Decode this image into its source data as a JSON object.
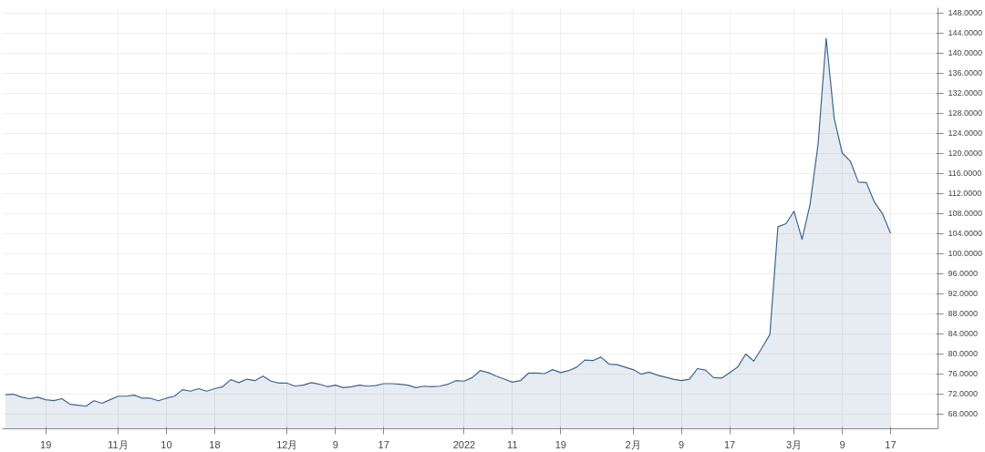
{
  "chart_data": {
    "type": "area",
    "categories": [
      null,
      null,
      null,
      null,
      null,
      "19",
      null,
      null,
      null,
      null,
      null,
      null,
      null,
      null,
      "11月",
      null,
      null,
      null,
      null,
      null,
      "10",
      null,
      null,
      null,
      null,
      null,
      "18",
      null,
      null,
      null,
      null,
      null,
      null,
      null,
      null,
      "12月",
      null,
      null,
      null,
      null,
      null,
      "9",
      null,
      null,
      null,
      null,
      null,
      "17",
      null,
      null,
      null,
      null,
      null,
      null,
      null,
      null,
      null,
      "2022",
      null,
      null,
      null,
      null,
      null,
      "11",
      null,
      null,
      null,
      null,
      null,
      "19",
      null,
      null,
      null,
      null,
      null,
      null,
      null,
      null,
      "2月",
      null,
      null,
      null,
      null,
      null,
      "9",
      null,
      null,
      null,
      null,
      null,
      "17",
      null,
      null,
      null,
      null,
      null,
      null,
      null,
      "3月",
      null,
      null,
      null,
      null,
      null,
      "9",
      null,
      null,
      null,
      null,
      null,
      "17"
    ],
    "series": [
      {
        "color": "#3b6591",
        "values": [
          71.8,
          71.9,
          71.3,
          71.0,
          71.3,
          70.8,
          70.6,
          71.0,
          69.9,
          69.7,
          69.5,
          70.6,
          70.1,
          70.8,
          71.5,
          71.5,
          71.7,
          71.1,
          71.1,
          70.6,
          71.1,
          71.5,
          72.8,
          72.5,
          73.0,
          72.5,
          73.0,
          73.4,
          74.8,
          74.2,
          74.9,
          74.6,
          75.5,
          74.5,
          74.1,
          74.1,
          73.5,
          73.7,
          74.2,
          73.9,
          73.4,
          73.7,
          73.2,
          73.4,
          73.7,
          73.5,
          73.6,
          74.0,
          74.0,
          73.9,
          73.7,
          73.2,
          73.5,
          73.4,
          73.5,
          73.9,
          74.6,
          74.5,
          75.2,
          76.6,
          76.2,
          75.5,
          74.9,
          74.3,
          74.6,
          76.1,
          76.1,
          76.0,
          76.8,
          76.2,
          76.6,
          77.3,
          78.7,
          78.6,
          79.3,
          77.9,
          77.8,
          77.3,
          76.8,
          75.9,
          76.3,
          75.7,
          75.3,
          74.9,
          74.6,
          74.9,
          77.0,
          76.7,
          75.2,
          75.1,
          76.2,
          77.3,
          79.9,
          78.5,
          81.1,
          83.8,
          105.3,
          105.9,
          108.4,
          102.8,
          109.8,
          121.9,
          142.9,
          126.9,
          120.0,
          118.4,
          114.2,
          114.1,
          110.2,
          107.9,
          104.0
        ]
      }
    ],
    "ylim": [
      65,
      149
    ],
    "yticks": [
      {
        "value": 68,
        "label": "68.0000"
      },
      {
        "value": 72,
        "label": "72.0000"
      },
      {
        "value": 76,
        "label": "76.0000"
      },
      {
        "value": 80,
        "label": "80.0000"
      },
      {
        "value": 84,
        "label": "84.0000"
      },
      {
        "value": 88,
        "label": "88.0000"
      },
      {
        "value": 92,
        "label": "92.0000"
      },
      {
        "value": 96,
        "label": "96.0000"
      },
      {
        "value": 100,
        "label": "100.0000"
      },
      {
        "value": 104,
        "label": "104.0000"
      },
      {
        "value": 108,
        "label": "108.0000"
      },
      {
        "value": 112,
        "label": "112.0000"
      },
      {
        "value": 116,
        "label": "116.0000"
      },
      {
        "value": 120,
        "label": "120.0000"
      },
      {
        "value": 124,
        "label": "124.0000"
      },
      {
        "value": 128,
        "label": "128.0000"
      },
      {
        "value": 132,
        "label": "132.0000"
      },
      {
        "value": 136,
        "label": "136.0000"
      },
      {
        "value": 140,
        "label": "140.0000"
      },
      {
        "value": 144,
        "label": "144.0000"
      },
      {
        "value": 148,
        "label": "148.0000"
      }
    ],
    "grid": true
  }
}
